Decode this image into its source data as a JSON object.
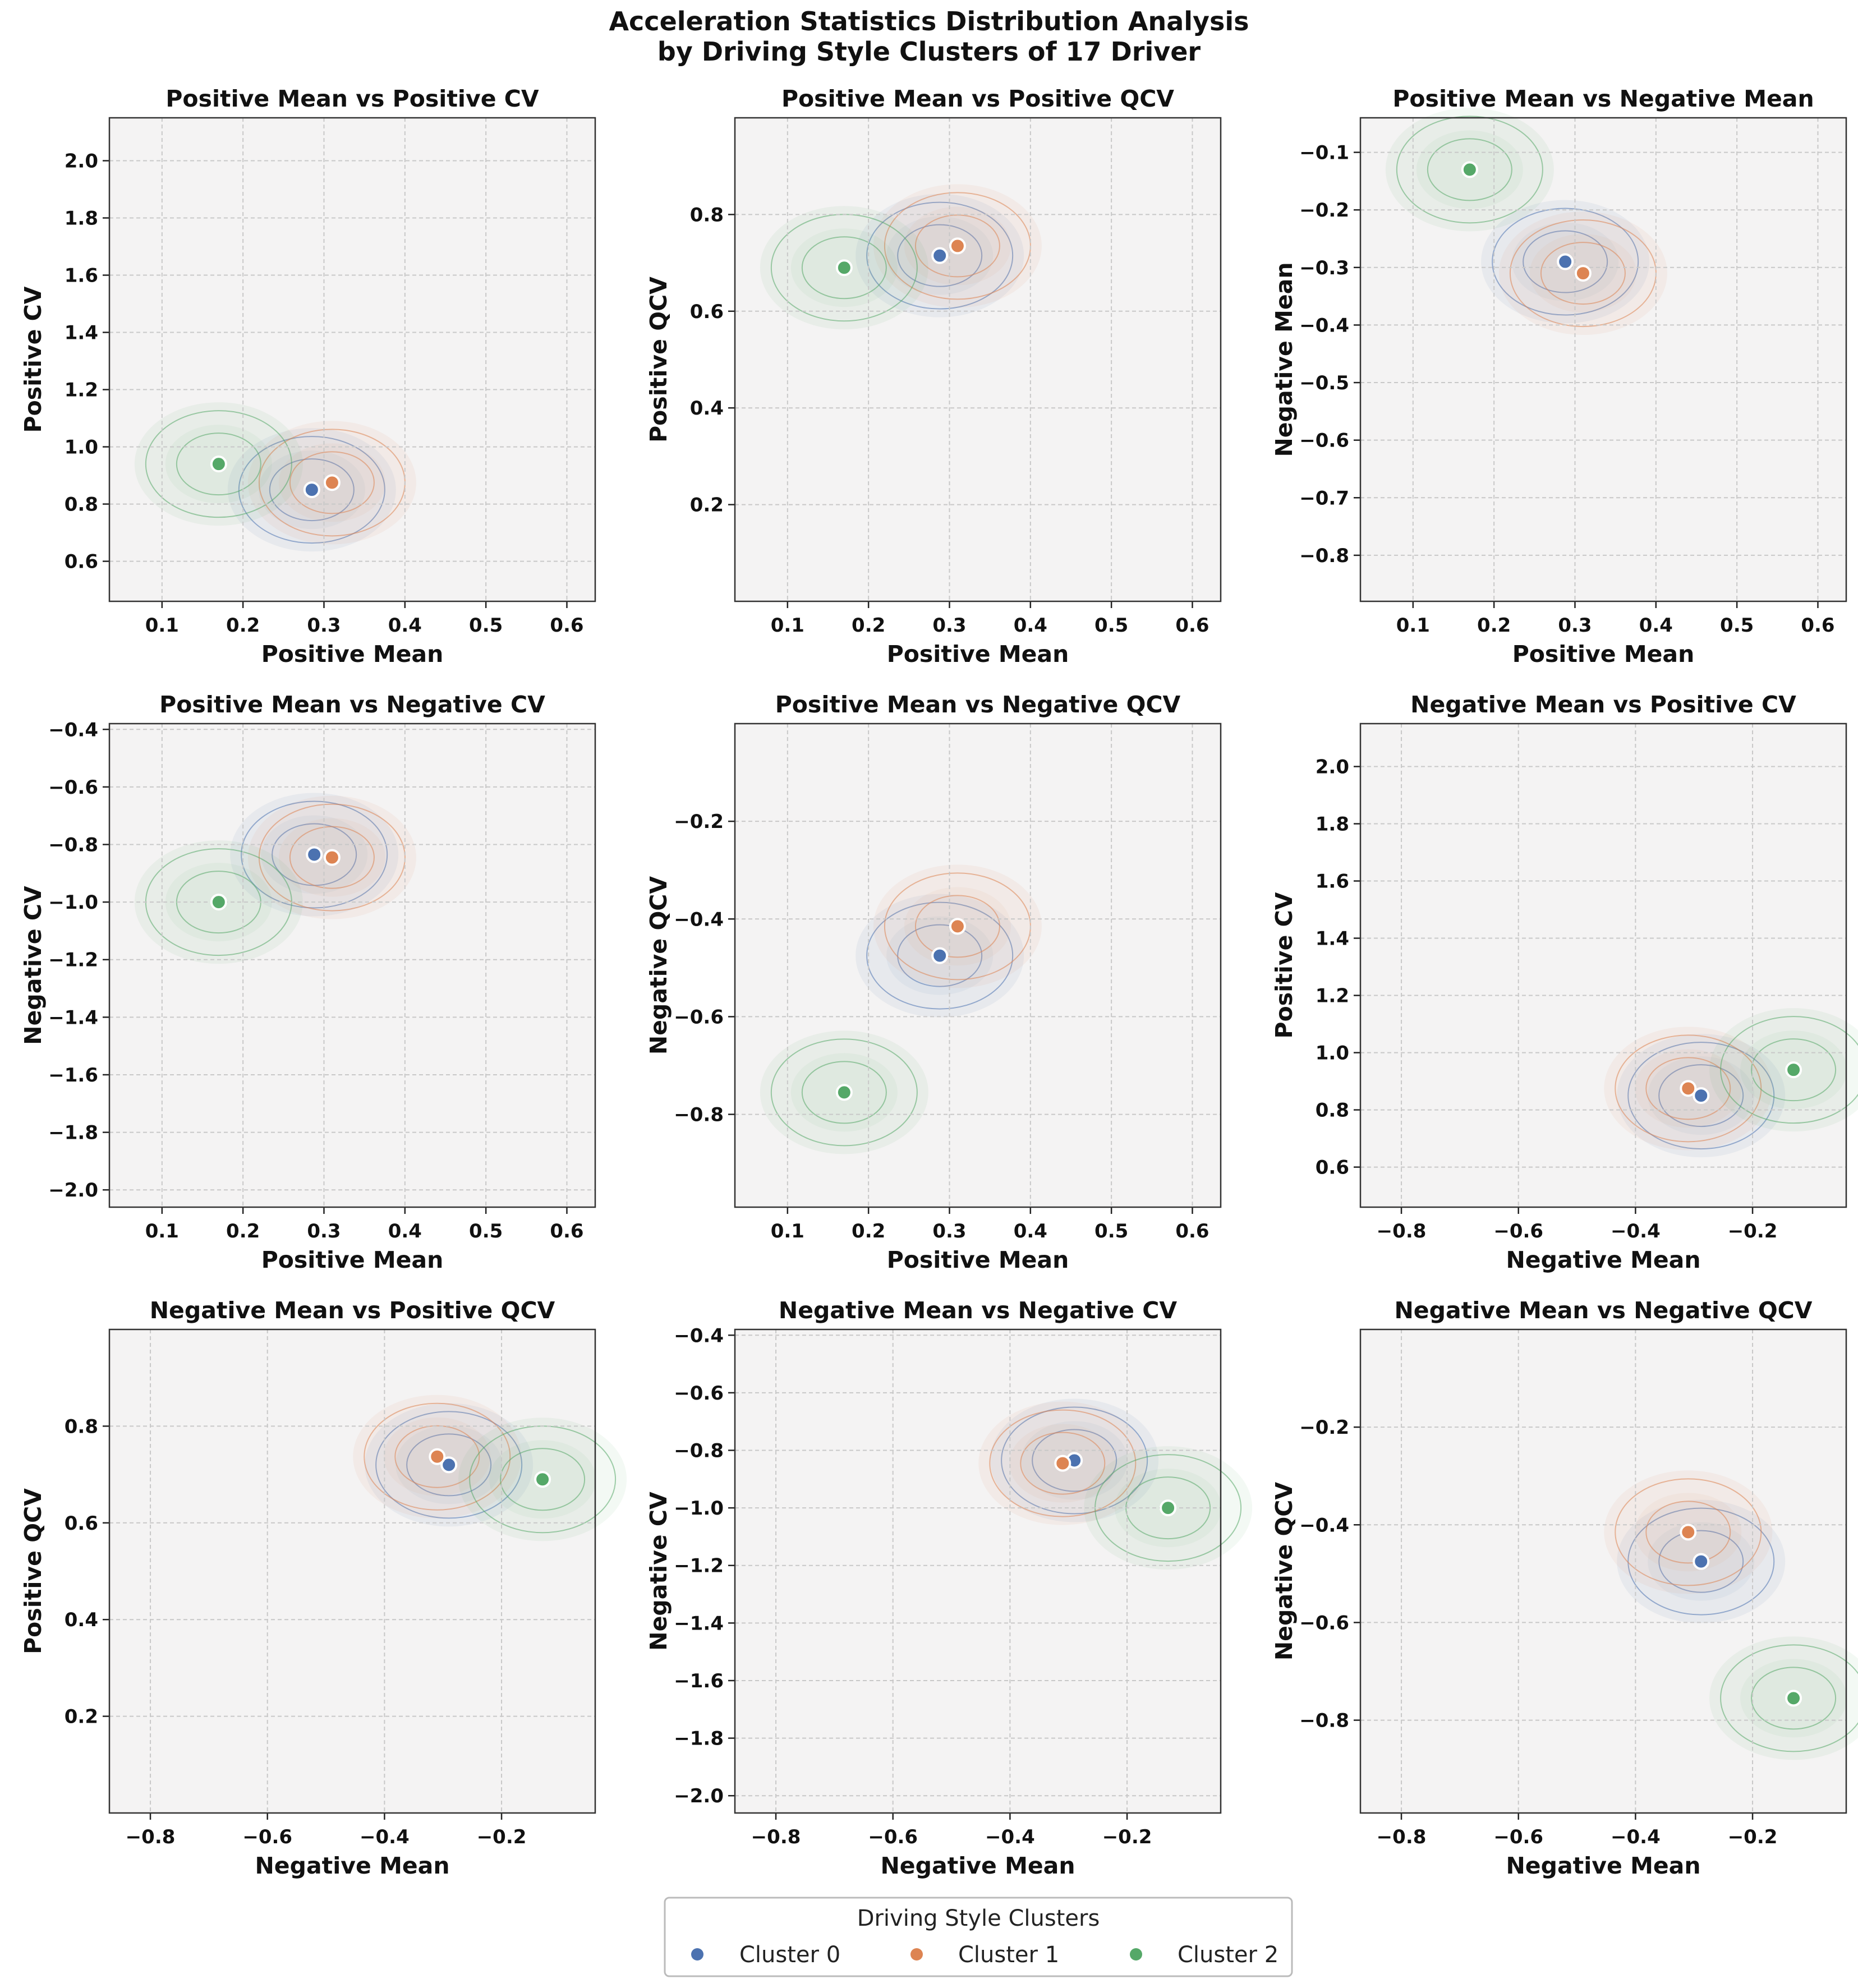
{
  "figure": {
    "title_line1": "Acceleration Statistics Distribution Analysis",
    "title_line2": "by Driving Style Clusters of 17 Driver"
  },
  "colors": {
    "cluster0": "#4c72b0",
    "cluster1": "#dd8452",
    "cluster2": "#55a868",
    "panel_bg": "#f4f3f3",
    "grid": "#c8c8c8"
  },
  "legend": {
    "title": "Driving Style Clusters",
    "labels": [
      "Cluster 0",
      "Cluster 1",
      "Cluster 2"
    ]
  },
  "chart_data": [
    {
      "type": "scatter",
      "title": "Positive Mean vs Positive CV",
      "xlabel": "Positive Mean",
      "ylabel": "Positive CV",
      "xlim": [
        0.035,
        0.635
      ],
      "ylim": [
        0.46,
        2.15
      ],
      "xticks": [
        0.1,
        0.2,
        0.3,
        0.4,
        0.5,
        0.6
      ],
      "yticks": [
        0.6,
        0.8,
        1.0,
        1.2,
        1.4,
        1.6,
        1.8,
        2.0
      ],
      "centroids": [
        {
          "cluster": "Cluster 0",
          "x": 0.285,
          "y": 0.85
        },
        {
          "cluster": "Cluster 1",
          "x": 0.31,
          "y": 0.875
        },
        {
          "cluster": "Cluster 2",
          "x": 0.17,
          "y": 0.94
        }
      ]
    },
    {
      "type": "scatter",
      "title": "Positive Mean vs Positive QCV",
      "xlabel": "Positive Mean",
      "ylabel": "Positive QCV",
      "xlim": [
        0.035,
        0.635
      ],
      "ylim": [
        0.0,
        1.0
      ],
      "xticks": [
        0.1,
        0.2,
        0.3,
        0.4,
        0.5,
        0.6
      ],
      "yticks": [
        0.2,
        0.4,
        0.6,
        0.8
      ],
      "centroids": [
        {
          "cluster": "Cluster 0",
          "x": 0.288,
          "y": 0.715
        },
        {
          "cluster": "Cluster 1",
          "x": 0.31,
          "y": 0.735
        },
        {
          "cluster": "Cluster 2",
          "x": 0.17,
          "y": 0.69
        }
      ]
    },
    {
      "type": "scatter",
      "title": "Positive Mean vs Negative Mean",
      "xlabel": "Positive Mean",
      "ylabel": "Negative Mean",
      "xlim": [
        0.035,
        0.635
      ],
      "ylim": [
        -0.88,
        -0.04
      ],
      "xticks": [
        0.1,
        0.2,
        0.3,
        0.4,
        0.5,
        0.6
      ],
      "yticks": [
        -0.1,
        -0.2,
        -0.3,
        -0.4,
        -0.5,
        -0.6,
        -0.7,
        -0.8
      ],
      "centroids": [
        {
          "cluster": "Cluster 0",
          "x": 0.288,
          "y": -0.29
        },
        {
          "cluster": "Cluster 1",
          "x": 0.31,
          "y": -0.31
        },
        {
          "cluster": "Cluster 2",
          "x": 0.17,
          "y": -0.13
        }
      ]
    },
    {
      "type": "scatter",
      "title": "Positive Mean vs Negative CV",
      "xlabel": "Positive Mean",
      "ylabel": "Negative CV",
      "xlim": [
        0.035,
        0.635
      ],
      "ylim": [
        -2.06,
        -0.38
      ],
      "xticks": [
        0.1,
        0.2,
        0.3,
        0.4,
        0.5,
        0.6
      ],
      "yticks": [
        -0.4,
        -0.6,
        -0.8,
        -1.0,
        -1.2,
        -1.4,
        -1.6,
        -1.8,
        -2.0
      ],
      "centroids": [
        {
          "cluster": "Cluster 0",
          "x": 0.288,
          "y": -0.835
        },
        {
          "cluster": "Cluster 1",
          "x": 0.31,
          "y": -0.845
        },
        {
          "cluster": "Cluster 2",
          "x": 0.17,
          "y": -1.0
        }
      ]
    },
    {
      "type": "scatter",
      "title": "Positive Mean vs Negative QCV",
      "xlabel": "Positive Mean",
      "ylabel": "Negative QCV",
      "xlim": [
        0.035,
        0.635
      ],
      "ylim": [
        -0.99,
        0.0
      ],
      "xticks": [
        0.1,
        0.2,
        0.3,
        0.4,
        0.5,
        0.6
      ],
      "yticks": [
        -0.2,
        -0.4,
        -0.6,
        -0.8
      ],
      "centroids": [
        {
          "cluster": "Cluster 0",
          "x": 0.288,
          "y": -0.475
        },
        {
          "cluster": "Cluster 1",
          "x": 0.31,
          "y": -0.415
        },
        {
          "cluster": "Cluster 2",
          "x": 0.17,
          "y": -0.755
        }
      ]
    },
    {
      "type": "scatter",
      "title": "Negative Mean vs Positive CV",
      "xlabel": "Negative Mean",
      "ylabel": "Positive CV",
      "xlim": [
        -0.87,
        -0.04
      ],
      "ylim": [
        0.46,
        2.15
      ],
      "xticks": [
        -0.8,
        -0.6,
        -0.4,
        -0.2
      ],
      "yticks": [
        0.6,
        0.8,
        1.0,
        1.2,
        1.4,
        1.6,
        1.8,
        2.0
      ],
      "centroids": [
        {
          "cluster": "Cluster 0",
          "x": -0.288,
          "y": 0.85
        },
        {
          "cluster": "Cluster 1",
          "x": -0.31,
          "y": 0.875
        },
        {
          "cluster": "Cluster 2",
          "x": -0.13,
          "y": 0.94
        }
      ]
    },
    {
      "type": "scatter",
      "title": "Negative Mean vs Positive QCV",
      "xlabel": "Negative Mean",
      "ylabel": "Positive QCV",
      "xlim": [
        -0.87,
        -0.04
      ],
      "ylim": [
        0.0,
        1.0
      ],
      "xticks": [
        -0.8,
        -0.6,
        -0.4,
        -0.2
      ],
      "yticks": [
        0.2,
        0.4,
        0.6,
        0.8
      ],
      "centroids": [
        {
          "cluster": "Cluster 0",
          "x": -0.29,
          "y": 0.72
        },
        {
          "cluster": "Cluster 1",
          "x": -0.31,
          "y": 0.737
        },
        {
          "cluster": "Cluster 2",
          "x": -0.13,
          "y": 0.69
        }
      ]
    },
    {
      "type": "scatter",
      "title": "Negative Mean vs Negative CV",
      "xlabel": "Negative Mean",
      "ylabel": "Negative CV",
      "xlim": [
        -0.87,
        -0.04
      ],
      "ylim": [
        -2.06,
        -0.38
      ],
      "xticks": [
        -0.8,
        -0.6,
        -0.4,
        -0.2
      ],
      "yticks": [
        -0.4,
        -0.6,
        -0.8,
        -1.0,
        -1.2,
        -1.4,
        -1.6,
        -1.8,
        -2.0
      ],
      "centroids": [
        {
          "cluster": "Cluster 0",
          "x": -0.29,
          "y": -0.835
        },
        {
          "cluster": "Cluster 1",
          "x": -0.31,
          "y": -0.845
        },
        {
          "cluster": "Cluster 2",
          "x": -0.13,
          "y": -1.0
        }
      ]
    },
    {
      "type": "scatter",
      "title": "Negative Mean vs Negative QCV",
      "xlabel": "Negative Mean",
      "ylabel": "Negative QCV",
      "xlim": [
        -0.87,
        -0.04
      ],
      "ylim": [
        -0.99,
        0.0
      ],
      "xticks": [
        -0.8,
        -0.6,
        -0.4,
        -0.2
      ],
      "yticks": [
        -0.2,
        -0.4,
        -0.6,
        -0.8
      ],
      "centroids": [
        {
          "cluster": "Cluster 0",
          "x": -0.288,
          "y": -0.475
        },
        {
          "cluster": "Cluster 1",
          "x": -0.31,
          "y": -0.415
        },
        {
          "cluster": "Cluster 2",
          "x": -0.13,
          "y": -0.755
        }
      ]
    }
  ]
}
